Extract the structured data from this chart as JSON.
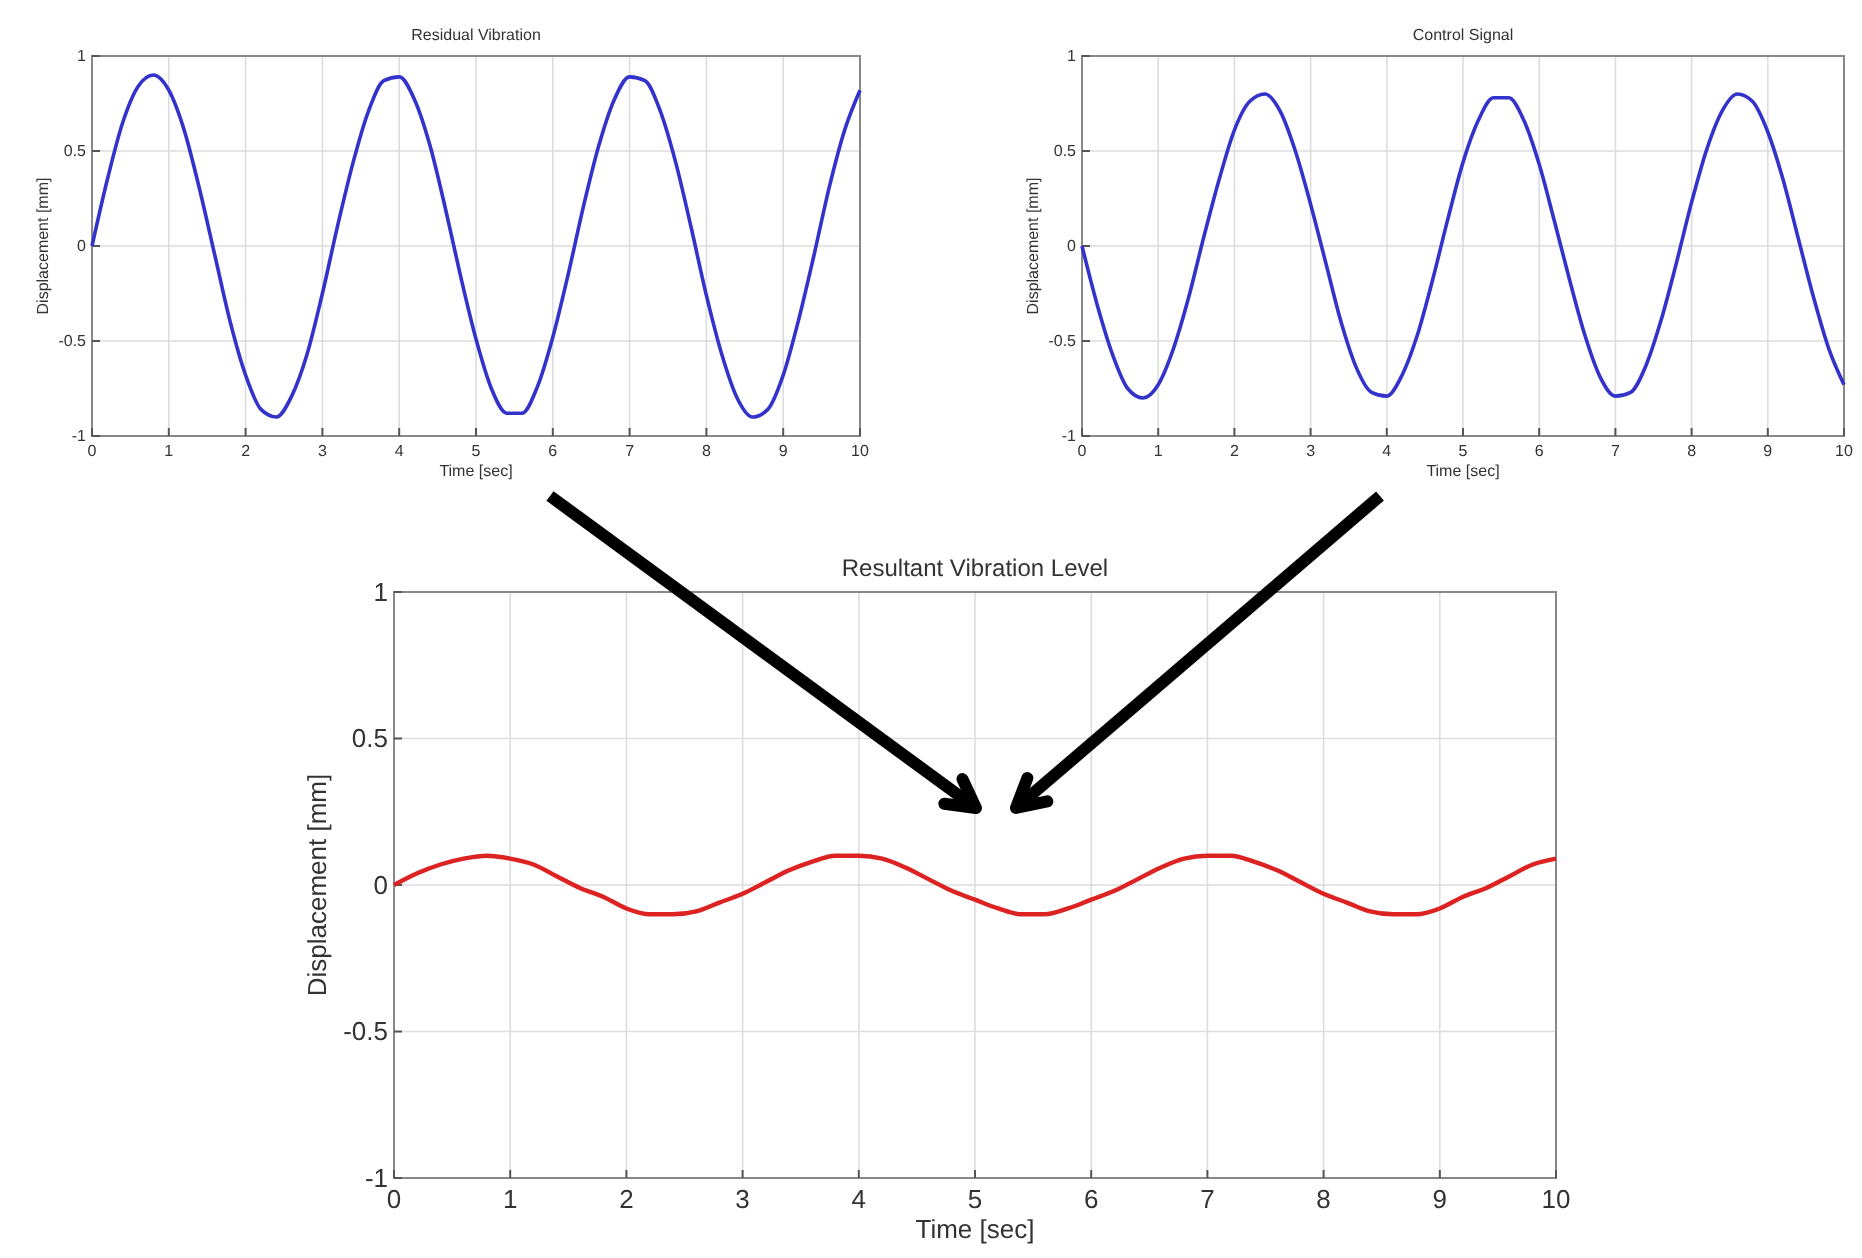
{
  "chart_data": [
    {
      "type": "line",
      "title": "Residual Vibration",
      "xlabel": "Time [sec]",
      "ylabel": "Displacement [mm]",
      "x": [
        0,
        0.2,
        0.4,
        0.6,
        0.8,
        1,
        1.2,
        1.4,
        1.6,
        1.8,
        2,
        2.2,
        2.4,
        2.6,
        2.8,
        3,
        3.2,
        3.4,
        3.6,
        3.8,
        4,
        4.2,
        4.4,
        4.6,
        4.8,
        5,
        5.2,
        5.4,
        5.6,
        5.8,
        6,
        6.2,
        6.4,
        6.6,
        6.8,
        7,
        7.2,
        7.4,
        7.6,
        7.8,
        8,
        8.2,
        8.4,
        8.6,
        8.8,
        9,
        9.2,
        9.4,
        9.6,
        9.8,
        10
      ],
      "series": [
        {
          "color": "#3333cc",
          "values": [
            0,
            0.35,
            0.65,
            0.84,
            0.9,
            0.82,
            0.61,
            0.3,
            -0.05,
            -0.4,
            -0.68,
            -0.86,
            -0.9,
            -0.79,
            -0.57,
            -0.25,
            0.11,
            0.44,
            0.71,
            0.87,
            0.89,
            0.77,
            0.53,
            0.2,
            -0.16,
            -0.49,
            -0.75,
            -0.88,
            -0.88,
            -0.74,
            -0.48,
            -0.15,
            0.21,
            0.53,
            0.77,
            0.89,
            0.87,
            0.71,
            0.44,
            0.1,
            -0.26,
            -0.57,
            -0.8,
            -0.9,
            -0.86,
            -0.68,
            -0.39,
            -0.05,
            0.31,
            0.61,
            0.82
          ]
        }
      ],
      "xlim": [
        0,
        10
      ],
      "xticks": [
        0,
        1,
        2,
        3,
        4,
        5,
        6,
        7,
        8,
        9,
        10
      ],
      "ylim": [
        -1,
        1
      ],
      "yticks": [
        -1,
        -0.5,
        0,
        0.5,
        1
      ],
      "grid": true
    },
    {
      "type": "line",
      "title": "Control Signal",
      "xlabel": "Time [sec]",
      "ylabel": "Displacement [mm]",
      "x": [
        0,
        0.2,
        0.4,
        0.6,
        0.8,
        1,
        1.2,
        1.4,
        1.6,
        1.8,
        2,
        2.2,
        2.4,
        2.6,
        2.8,
        3,
        3.2,
        3.4,
        3.6,
        3.8,
        4,
        4.2,
        4.4,
        4.6,
        4.8,
        5,
        5.2,
        5.4,
        5.6,
        5.8,
        6,
        6.2,
        6.4,
        6.6,
        6.8,
        7,
        7.2,
        7.4,
        7.6,
        7.8,
        8,
        8.2,
        8.4,
        8.6,
        8.8,
        9,
        9.2,
        9.4,
        9.6,
        9.8,
        10
      ],
      "series": [
        {
          "color": "#3333cc",
          "values": [
            0,
            -0.31,
            -0.57,
            -0.75,
            -0.8,
            -0.73,
            -0.54,
            -0.27,
            0.05,
            0.35,
            0.61,
            0.76,
            0.8,
            0.71,
            0.5,
            0.22,
            -0.09,
            -0.4,
            -0.64,
            -0.77,
            -0.79,
            -0.68,
            -0.47,
            -0.18,
            0.14,
            0.44,
            0.66,
            0.78,
            0.78,
            0.66,
            0.43,
            0.13,
            -0.18,
            -0.47,
            -0.69,
            -0.79,
            -0.77,
            -0.63,
            -0.39,
            -0.09,
            0.23,
            0.51,
            0.71,
            0.8,
            0.76,
            0.6,
            0.35,
            0.04,
            -0.27,
            -0.54,
            -0.73
          ]
        }
      ],
      "xlim": [
        0,
        10
      ],
      "xticks": [
        0,
        1,
        2,
        3,
        4,
        5,
        6,
        7,
        8,
        9,
        10
      ],
      "ylim": [
        -1,
        1
      ],
      "yticks": [
        -1,
        -0.5,
        0,
        0.5,
        1
      ],
      "grid": true
    },
    {
      "type": "line",
      "title": "Resultant Vibration Level",
      "xlabel": "Time [sec]",
      "ylabel": "Displacement [mm]",
      "x": [
        0,
        0.2,
        0.4,
        0.6,
        0.8,
        1,
        1.2,
        1.4,
        1.6,
        1.8,
        2,
        2.2,
        2.4,
        2.6,
        2.8,
        3,
        3.2,
        3.4,
        3.6,
        3.8,
        4,
        4.2,
        4.4,
        4.6,
        4.8,
        5,
        5.2,
        5.4,
        5.6,
        5.8,
        6,
        6.2,
        6.4,
        6.6,
        6.8,
        7,
        7.2,
        7.4,
        7.6,
        7.8,
        8,
        8.2,
        8.4,
        8.6,
        8.8,
        9,
        9.2,
        9.4,
        9.6,
        9.8,
        10
      ],
      "series": [
        {
          "color": "#dd2222",
          "values": [
            0,
            0.04,
            0.07,
            0.09,
            0.1,
            0.09,
            0.07,
            0.03,
            -0.01,
            -0.04,
            -0.08,
            -0.1,
            -0.1,
            -0.09,
            -0.06,
            -0.03,
            0.01,
            0.05,
            0.08,
            0.1,
            0.1,
            0.09,
            0.06,
            0.02,
            -0.02,
            -0.05,
            -0.08,
            -0.1,
            -0.1,
            -0.08,
            -0.05,
            -0.02,
            0.02,
            0.06,
            0.09,
            0.1,
            0.1,
            0.08,
            0.05,
            0.01,
            -0.03,
            -0.06,
            -0.09,
            -0.1,
            -0.1,
            -0.08,
            -0.04,
            -0.01,
            0.03,
            0.07,
            0.09
          ]
        }
      ],
      "xlim": [
        0,
        10
      ],
      "xticks": [
        0,
        1,
        2,
        3,
        4,
        5,
        6,
        7,
        8,
        9,
        10
      ],
      "ylim": [
        -1,
        1
      ],
      "yticks": [
        -1,
        -0.5,
        0,
        0.5,
        1
      ],
      "grid": true
    }
  ]
}
